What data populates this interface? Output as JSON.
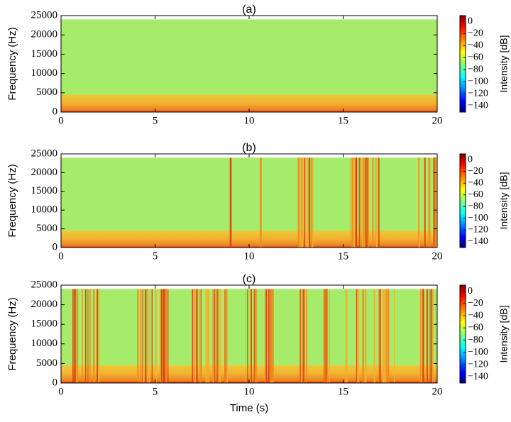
{
  "chart_data": [
    {
      "type": "spectrogram",
      "title": "(a)",
      "ylabel": "Frequency (Hz)",
      "xlim": [
        0,
        20
      ],
      "xticks": [
        0,
        5,
        10,
        15,
        20
      ],
      "ylim": [
        0,
        25000
      ],
      "yticks": [
        0,
        5000,
        10000,
        15000,
        20000,
        25000
      ],
      "max_frequency": 24000,
      "band_frequency": 4500,
      "bursts": [],
      "colorbar_label": "Intensity [dB]",
      "clim": [
        -150,
        10
      ],
      "cticks": [
        {
          "value": -140,
          "label": "−140"
        },
        {
          "value": -120,
          "label": "−120"
        },
        {
          "value": -100,
          "label": "−100"
        },
        {
          "value": -80,
          "label": "−80"
        },
        {
          "value": -60,
          "label": "−60"
        },
        {
          "value": -40,
          "label": "−40"
        },
        {
          "value": -20,
          "label": "−20"
        },
        0
      ]
    },
    {
      "type": "spectrogram",
      "title": "(b)",
      "ylabel": "Frequency (Hz)",
      "xlim": [
        0,
        20
      ],
      "xticks": [
        0,
        5,
        10,
        15,
        20
      ],
      "ylim": [
        0,
        25000
      ],
      "yticks": [
        0,
        5000,
        10000,
        15000,
        20000,
        25000
      ],
      "max_frequency": 24000,
      "band_frequency": 4500,
      "bursts": [
        [
          8.95,
          9.05
        ],
        [
          10.55,
          10.65
        ],
        [
          12.4,
          13.7
        ],
        [
          15.3,
          16.9
        ],
        [
          18.9,
          19.95
        ]
      ],
      "colorbar_label": "Intensity [dB]",
      "clim": [
        -150,
        10
      ],
      "cticks": [
        {
          "value": -140,
          "label": "−140"
        },
        {
          "value": -120,
          "label": "−120"
        },
        {
          "value": -100,
          "label": "−100"
        },
        {
          "value": -80,
          "label": "−80"
        },
        {
          "value": -60,
          "label": "−60"
        },
        {
          "value": -40,
          "label": "−40"
        },
        {
          "value": -20,
          "label": "−20"
        },
        0
      ]
    },
    {
      "type": "spectrogram",
      "title": "(c)",
      "ylabel": "Frequency (Hz)",
      "xlabel": "Time (s)",
      "xlim": [
        0,
        20
      ],
      "xticks": [
        0,
        5,
        10,
        15,
        20
      ],
      "ylim": [
        0,
        25000
      ],
      "yticks": [
        0,
        5000,
        10000,
        15000,
        20000,
        25000
      ],
      "max_frequency": 24000,
      "band_frequency": 4500,
      "bursts": [
        [
          0.6,
          2.0
        ],
        [
          3.7,
          5.7
        ],
        [
          6.9,
          8.9
        ],
        [
          9.8,
          11.4
        ],
        [
          12.6,
          13.2
        ],
        [
          13.9,
          14.5
        ],
        [
          15.1,
          15.2
        ],
        [
          15.7,
          16.3
        ],
        [
          16.6,
          17.8
        ],
        [
          19.1,
          19.9
        ]
      ],
      "colorbar_label": "Intensity [dB]",
      "clim": [
        -150,
        10
      ],
      "cticks": [
        {
          "value": -140,
          "label": "−140"
        },
        {
          "value": -120,
          "label": "−120"
        },
        {
          "value": -100,
          "label": "−100"
        },
        {
          "value": -80,
          "label": "−80"
        },
        {
          "value": -60,
          "label": "−60"
        },
        {
          "value": -40,
          "label": "−40"
        },
        {
          "value": -20,
          "label": "−20"
        },
        0
      ]
    }
  ]
}
